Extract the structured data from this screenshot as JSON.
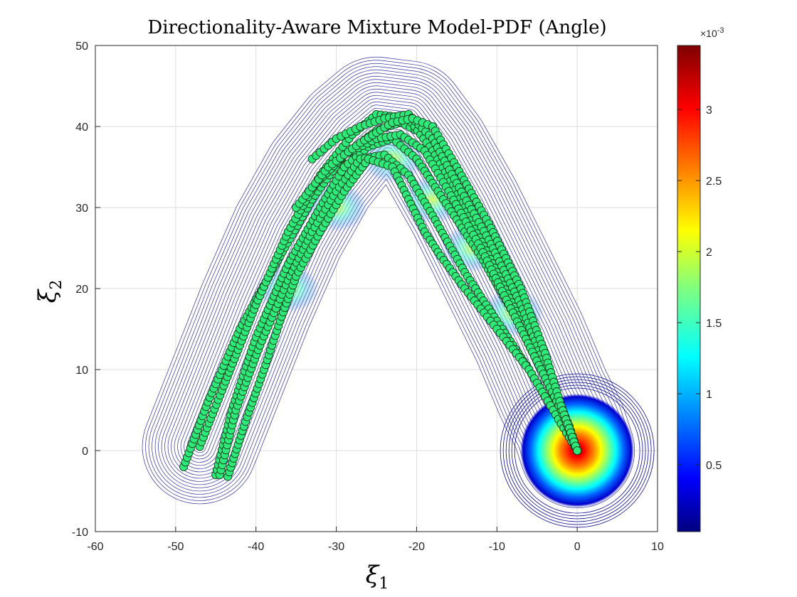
{
  "chart_data": {
    "type": "contour",
    "title": "Directionality-Aware Mixture Model-PDF (Angle)",
    "xlabel_symbol": "ξ",
    "xlabel_sub": "1",
    "ylabel_symbol": "ξ",
    "ylabel_sub": "2",
    "xlim": [
      -60,
      10
    ],
    "ylim": [
      -10,
      50
    ],
    "xticks": [
      -60,
      -50,
      -40,
      -30,
      -20,
      -10,
      0,
      10
    ],
    "yticks": [
      -10,
      0,
      10,
      20,
      30,
      40,
      50
    ],
    "grid": true,
    "colormap": "jet",
    "colorbar": {
      "range": [
        3e-05,
        0.00345
      ],
      "ticks": [
        0.5,
        1,
        1.5,
        2,
        2.5,
        3
      ],
      "exponent_label": "×10",
      "exponent_power": "-3"
    },
    "marker_color": "#2ee87a",
    "marker_edge": "#1a3a1a",
    "trajectories": [
      {
        "points": [
          [
            -49,
            -2
          ],
          [
            -46,
            6
          ],
          [
            -42,
            15
          ],
          [
            -37,
            24
          ],
          [
            -33,
            31
          ],
          [
            -29,
            36.5
          ],
          [
            -25,
            39.5
          ],
          [
            -22,
            40.5
          ],
          [
            -19,
            39
          ],
          [
            -16,
            34
          ],
          [
            -12,
            27
          ],
          [
            -8,
            19
          ],
          [
            -4,
            10
          ],
          [
            -1.5,
            4
          ],
          [
            0,
            0
          ]
        ]
      },
      {
        "points": [
          [
            -47,
            0.5
          ],
          [
            -44,
            8
          ],
          [
            -40,
            18
          ],
          [
            -36,
            27
          ],
          [
            -32,
            34
          ],
          [
            -28,
            39
          ],
          [
            -25,
            41.5
          ],
          [
            -21,
            41
          ],
          [
            -18,
            37
          ],
          [
            -14,
            30
          ],
          [
            -10,
            22
          ],
          [
            -6,
            14
          ],
          [
            -3,
            7
          ],
          [
            -1,
            3
          ],
          [
            0,
            0
          ]
        ]
      },
      {
        "points": [
          [
            -45,
            -3
          ],
          [
            -43,
            5
          ],
          [
            -40,
            14
          ],
          [
            -36,
            23
          ],
          [
            -32,
            30
          ],
          [
            -29,
            35
          ],
          [
            -26,
            37.5
          ],
          [
            -23,
            38.5
          ],
          [
            -20,
            36
          ],
          [
            -16,
            30
          ],
          [
            -12,
            24
          ],
          [
            -8,
            17
          ],
          [
            -4,
            9
          ],
          [
            -1.5,
            4
          ],
          [
            0,
            0
          ]
        ]
      },
      {
        "points": [
          [
            -44.5,
            -3
          ],
          [
            -42.5,
            5
          ],
          [
            -39.5,
            13
          ],
          [
            -36,
            21
          ],
          [
            -33,
            27
          ],
          [
            -30,
            32
          ],
          [
            -27,
            36
          ],
          [
            -24,
            36.5
          ],
          [
            -21,
            34
          ],
          [
            -18,
            29
          ],
          [
            -14,
            22
          ],
          [
            -10,
            16
          ],
          [
            -6,
            10
          ],
          [
            -3,
            5
          ],
          [
            0,
            0
          ]
        ]
      },
      {
        "points": [
          [
            -43.5,
            -3.2
          ],
          [
            -41.5,
            3
          ],
          [
            -39,
            10
          ],
          [
            -37,
            16
          ],
          [
            -35,
            21.5
          ],
          [
            -32,
            27
          ],
          [
            -29,
            32
          ],
          [
            -26,
            36
          ],
          [
            -23,
            35
          ],
          [
            -21,
            31
          ],
          [
            -19,
            27
          ],
          [
            -17,
            24
          ],
          [
            -14,
            20
          ],
          [
            -10,
            15
          ],
          [
            -6,
            10
          ],
          [
            -3,
            5
          ],
          [
            0,
            0
          ]
        ]
      },
      {
        "points": [
          [
            -33,
            36
          ],
          [
            -30,
            38.5
          ],
          [
            -27,
            40
          ],
          [
            -24,
            41
          ],
          [
            -21,
            41.5
          ],
          [
            -18,
            38.5
          ],
          [
            -15,
            33
          ],
          [
            -11,
            26
          ],
          [
            -7,
            18
          ],
          [
            -3.5,
            9
          ],
          [
            -1,
            3
          ],
          [
            0,
            0
          ]
        ]
      },
      {
        "points": [
          [
            -33,
            32.5
          ],
          [
            -29,
            36.5
          ],
          [
            -25,
            38.5
          ],
          [
            -22,
            39
          ],
          [
            -19,
            37
          ],
          [
            -16,
            32
          ],
          [
            -12,
            25
          ],
          [
            -8,
            17
          ],
          [
            -4.5,
            10
          ],
          [
            -2,
            5
          ],
          [
            0,
            0
          ]
        ]
      },
      {
        "points": [
          [
            -35,
            30
          ],
          [
            -31,
            35
          ],
          [
            -27,
            38
          ],
          [
            -23,
            40.5
          ],
          [
            -20.5,
            41
          ],
          [
            -18,
            40
          ],
          [
            -15,
            35
          ],
          [
            -11,
            28
          ],
          [
            -7,
            20
          ],
          [
            -4,
            12
          ],
          [
            -2,
            5.5
          ],
          [
            0,
            0
          ]
        ]
      }
    ]
  }
}
